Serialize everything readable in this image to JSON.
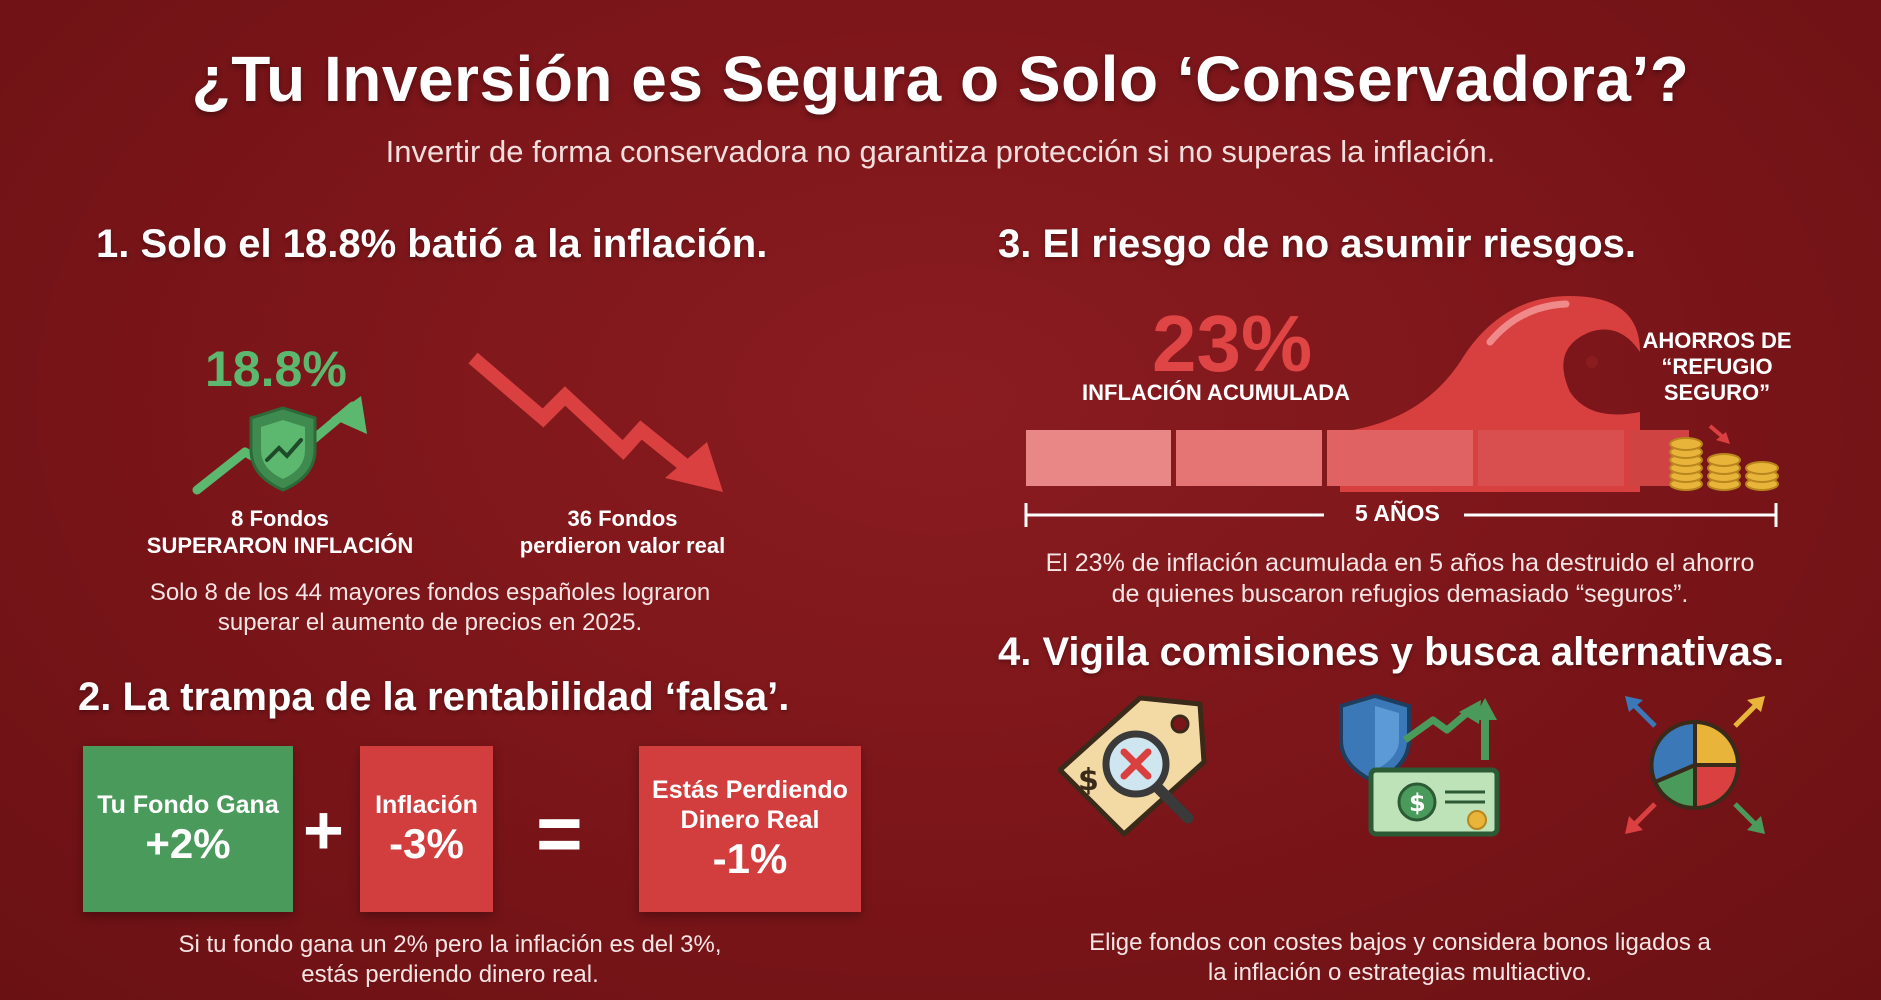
{
  "header": {
    "title": "¿Tu Inversión es Segura o Solo ‘Conservadora’?",
    "subtitle": "Invertir de forma conservadora no garantiza protección si no superas la inflación."
  },
  "section1": {
    "heading": "1. Solo el 18.8% batió a la inflación.",
    "percent": "18.8%",
    "up_caption_line1": "8 Fondos",
    "up_caption_line2": "SUPERARON INFLACIÓN",
    "down_caption_line1": "36 Fondos",
    "down_caption_line2": "perdieron valor real",
    "text_line1": "Solo 8 de los 44 mayores fondos españoles lograron",
    "text_line2": "superar el aumento de precios en 2025."
  },
  "section2": {
    "heading": "2. La trampa de la rentabilidad ‘falsa’.",
    "box1_label": "Tu Fondo Gana",
    "box1_value": "+2%",
    "plus": "+",
    "box2_label": "Inflación",
    "box2_value": "-3%",
    "equals": "=",
    "box3_label_line1": "Estás Perdiendo",
    "box3_label_line2": "Dinero Real",
    "box3_value": "-1%",
    "text_line1": "Si tu fondo gana un 2% pero la inflación es del 3%,",
    "text_line2": "estás perdiendo dinero real."
  },
  "section3": {
    "heading": "3. El riesgo de no asumir riesgos.",
    "percent": "23%",
    "percent_label": "INFLACIÓN ACUMULADA",
    "savings_line1": "AHORROS DE",
    "savings_line2": "“REFUGIO",
    "savings_line3": "SEGURO”",
    "span_label": "5 AÑOS",
    "text_line1": "El 23% de inflación acumulada en 5 años ha destruido el ahorro",
    "text_line2": "de quienes buscaron refugios demasiado “seguros”."
  },
  "section4": {
    "heading": "4. Vigila comisiones y busca alternativas.",
    "icons": [
      "price-tag-magnifier-icon",
      "shield-banknote-growth-icon",
      "pie-chart-diversify-icon"
    ],
    "text_line1": "Elige fondos con costes bajos y considera bonos ligados a",
    "text_line2": "la inflación o estrategias multiactivo."
  },
  "colors": {
    "background": "#7a1519",
    "accent_green": "#4a9a5c",
    "accent_red": "#d23d3d",
    "gold": "#e8b43a"
  }
}
